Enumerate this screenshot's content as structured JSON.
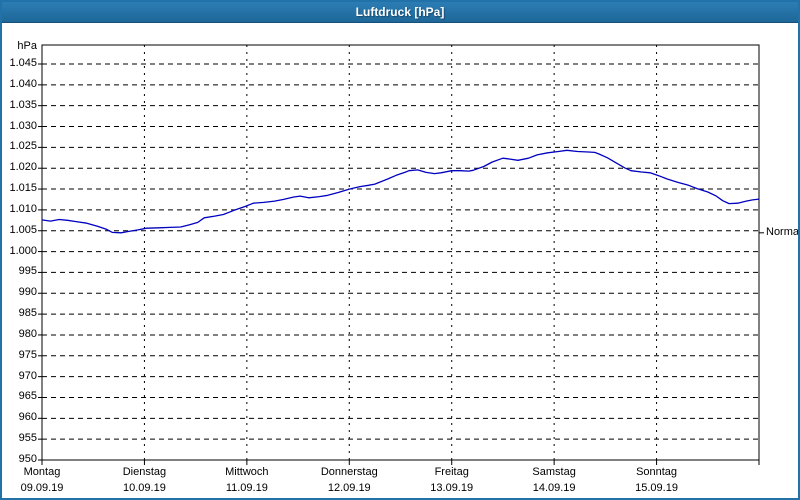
{
  "window": {
    "title": "Luftdruck [hPa]"
  },
  "colors": {
    "titlebar": "#2172a8",
    "window_border": "#2172a8",
    "curve": "#0000c0",
    "grid": "#000000",
    "background": "#ffffff",
    "text": "#000000"
  },
  "axes": {
    "unit_label": "hPa",
    "y_ticks": [
      {
        "value": 1045,
        "label": "1.045"
      },
      {
        "value": 1040,
        "label": "1.040"
      },
      {
        "value": 1035,
        "label": "1.035"
      },
      {
        "value": 1030,
        "label": "1.030"
      },
      {
        "value": 1025,
        "label": "1.025"
      },
      {
        "value": 1020,
        "label": "1.020"
      },
      {
        "value": 1015,
        "label": "1.015"
      },
      {
        "value": 1010,
        "label": "1.010"
      },
      {
        "value": 1005,
        "label": "1.005"
      },
      {
        "value": 1000,
        "label": "1.000"
      },
      {
        "value": 995,
        "label": "995"
      },
      {
        "value": 990,
        "label": "990"
      },
      {
        "value": 985,
        "label": "985"
      },
      {
        "value": 980,
        "label": "980"
      },
      {
        "value": 975,
        "label": "975"
      },
      {
        "value": 970,
        "label": "970"
      },
      {
        "value": 965,
        "label": "965"
      },
      {
        "value": 960,
        "label": "960"
      },
      {
        "value": 955,
        "label": "955"
      },
      {
        "value": 950,
        "label": "950"
      }
    ],
    "x_days": [
      {
        "name": "Montag",
        "date": "09.09.19"
      },
      {
        "name": "Dienstag",
        "date": "10.09.19"
      },
      {
        "name": "Mittwoch",
        "date": "11.09.19"
      },
      {
        "name": "Donnerstag",
        "date": "12.09.19"
      },
      {
        "name": "Freitag",
        "date": "13.09.19"
      },
      {
        "name": "Samstag",
        "date": "14.09.19"
      },
      {
        "name": "Sonntag",
        "date": "15.09.19"
      }
    ]
  },
  "normal_marker": {
    "label": "Normal",
    "value_hpa": 1004.5
  },
  "chart_data": {
    "type": "line",
    "title": "Luftdruck [hPa]",
    "ylabel": "hPa",
    "ylim": [
      950,
      1045
    ],
    "y_tick_step": 5,
    "xlim_hours": [
      0,
      168
    ],
    "x_categories": [
      "Montag 09.09.19",
      "Dienstag 10.09.19",
      "Mittwoch 11.09.19",
      "Donnerstag 12.09.19",
      "Freitag 13.09.19",
      "Samstag 14.09.19",
      "Sonntag 15.09.19"
    ],
    "grid": true,
    "legend_position": "none",
    "annotations": [
      {
        "label": "Normal",
        "value": 1004.5,
        "side": "right"
      }
    ],
    "series": [
      {
        "name": "Luftdruck",
        "color": "#0000c0",
        "x_hours": [
          0,
          2,
          4,
          6,
          8,
          10.5,
          13,
          15,
          16.5,
          18.5,
          20,
          22.5,
          24.5,
          27.5,
          30,
          32.5,
          34.5,
          36.5,
          38,
          40.5,
          42.5,
          45,
          47.5,
          49.5,
          52,
          54.5,
          56.5,
          59,
          60.5,
          62.5,
          65,
          67,
          69.5,
          72,
          74.5,
          76.5,
          78,
          79,
          81,
          83,
          85,
          86,
          88,
          90,
          92,
          93.5,
          96,
          98,
          100,
          101,
          103.5,
          105.5,
          108,
          109.5,
          111.5,
          114,
          116,
          118.5,
          121,
          123,
          125.5,
          128,
          129.5,
          130.5,
          132.5,
          134.5,
          136.5,
          138,
          140.5,
          142.5,
          144.5,
          146.5,
          149,
          151.5,
          153.5,
          156,
          158,
          159.5,
          161,
          163,
          165,
          166.5,
          168
        ],
        "values_hpa": [
          1007.6,
          1007.3,
          1007.7,
          1007.5,
          1007.2,
          1006.8,
          1006.1,
          1005.4,
          1004.6,
          1004.5,
          1004.8,
          1005.2,
          1005.6,
          1005.7,
          1005.8,
          1005.9,
          1006.4,
          1007.0,
          1008.1,
          1008.5,
          1008.9,
          1009.9,
          1010.8,
          1011.6,
          1011.8,
          1012.1,
          1012.5,
          1013.1,
          1013.3,
          1012.9,
          1013.2,
          1013.5,
          1014.2,
          1015.0,
          1015.6,
          1015.9,
          1016.2,
          1016.6,
          1017.4,
          1018.3,
          1019.0,
          1019.4,
          1019.6,
          1019.0,
          1018.7,
          1018.9,
          1019.4,
          1019.4,
          1019.3,
          1019.5,
          1020.4,
          1021.5,
          1022.4,
          1022.2,
          1021.9,
          1022.4,
          1023.2,
          1023.7,
          1024.0,
          1024.3,
          1024.0,
          1023.9,
          1023.8,
          1023.4,
          1022.5,
          1021.3,
          1020.1,
          1019.4,
          1019.1,
          1018.9,
          1018.2,
          1017.4,
          1016.6,
          1015.9,
          1015.1,
          1014.3,
          1013.3,
          1012.2,
          1011.5,
          1011.6,
          1012.1,
          1012.4,
          1012.6
        ]
      }
    ]
  }
}
